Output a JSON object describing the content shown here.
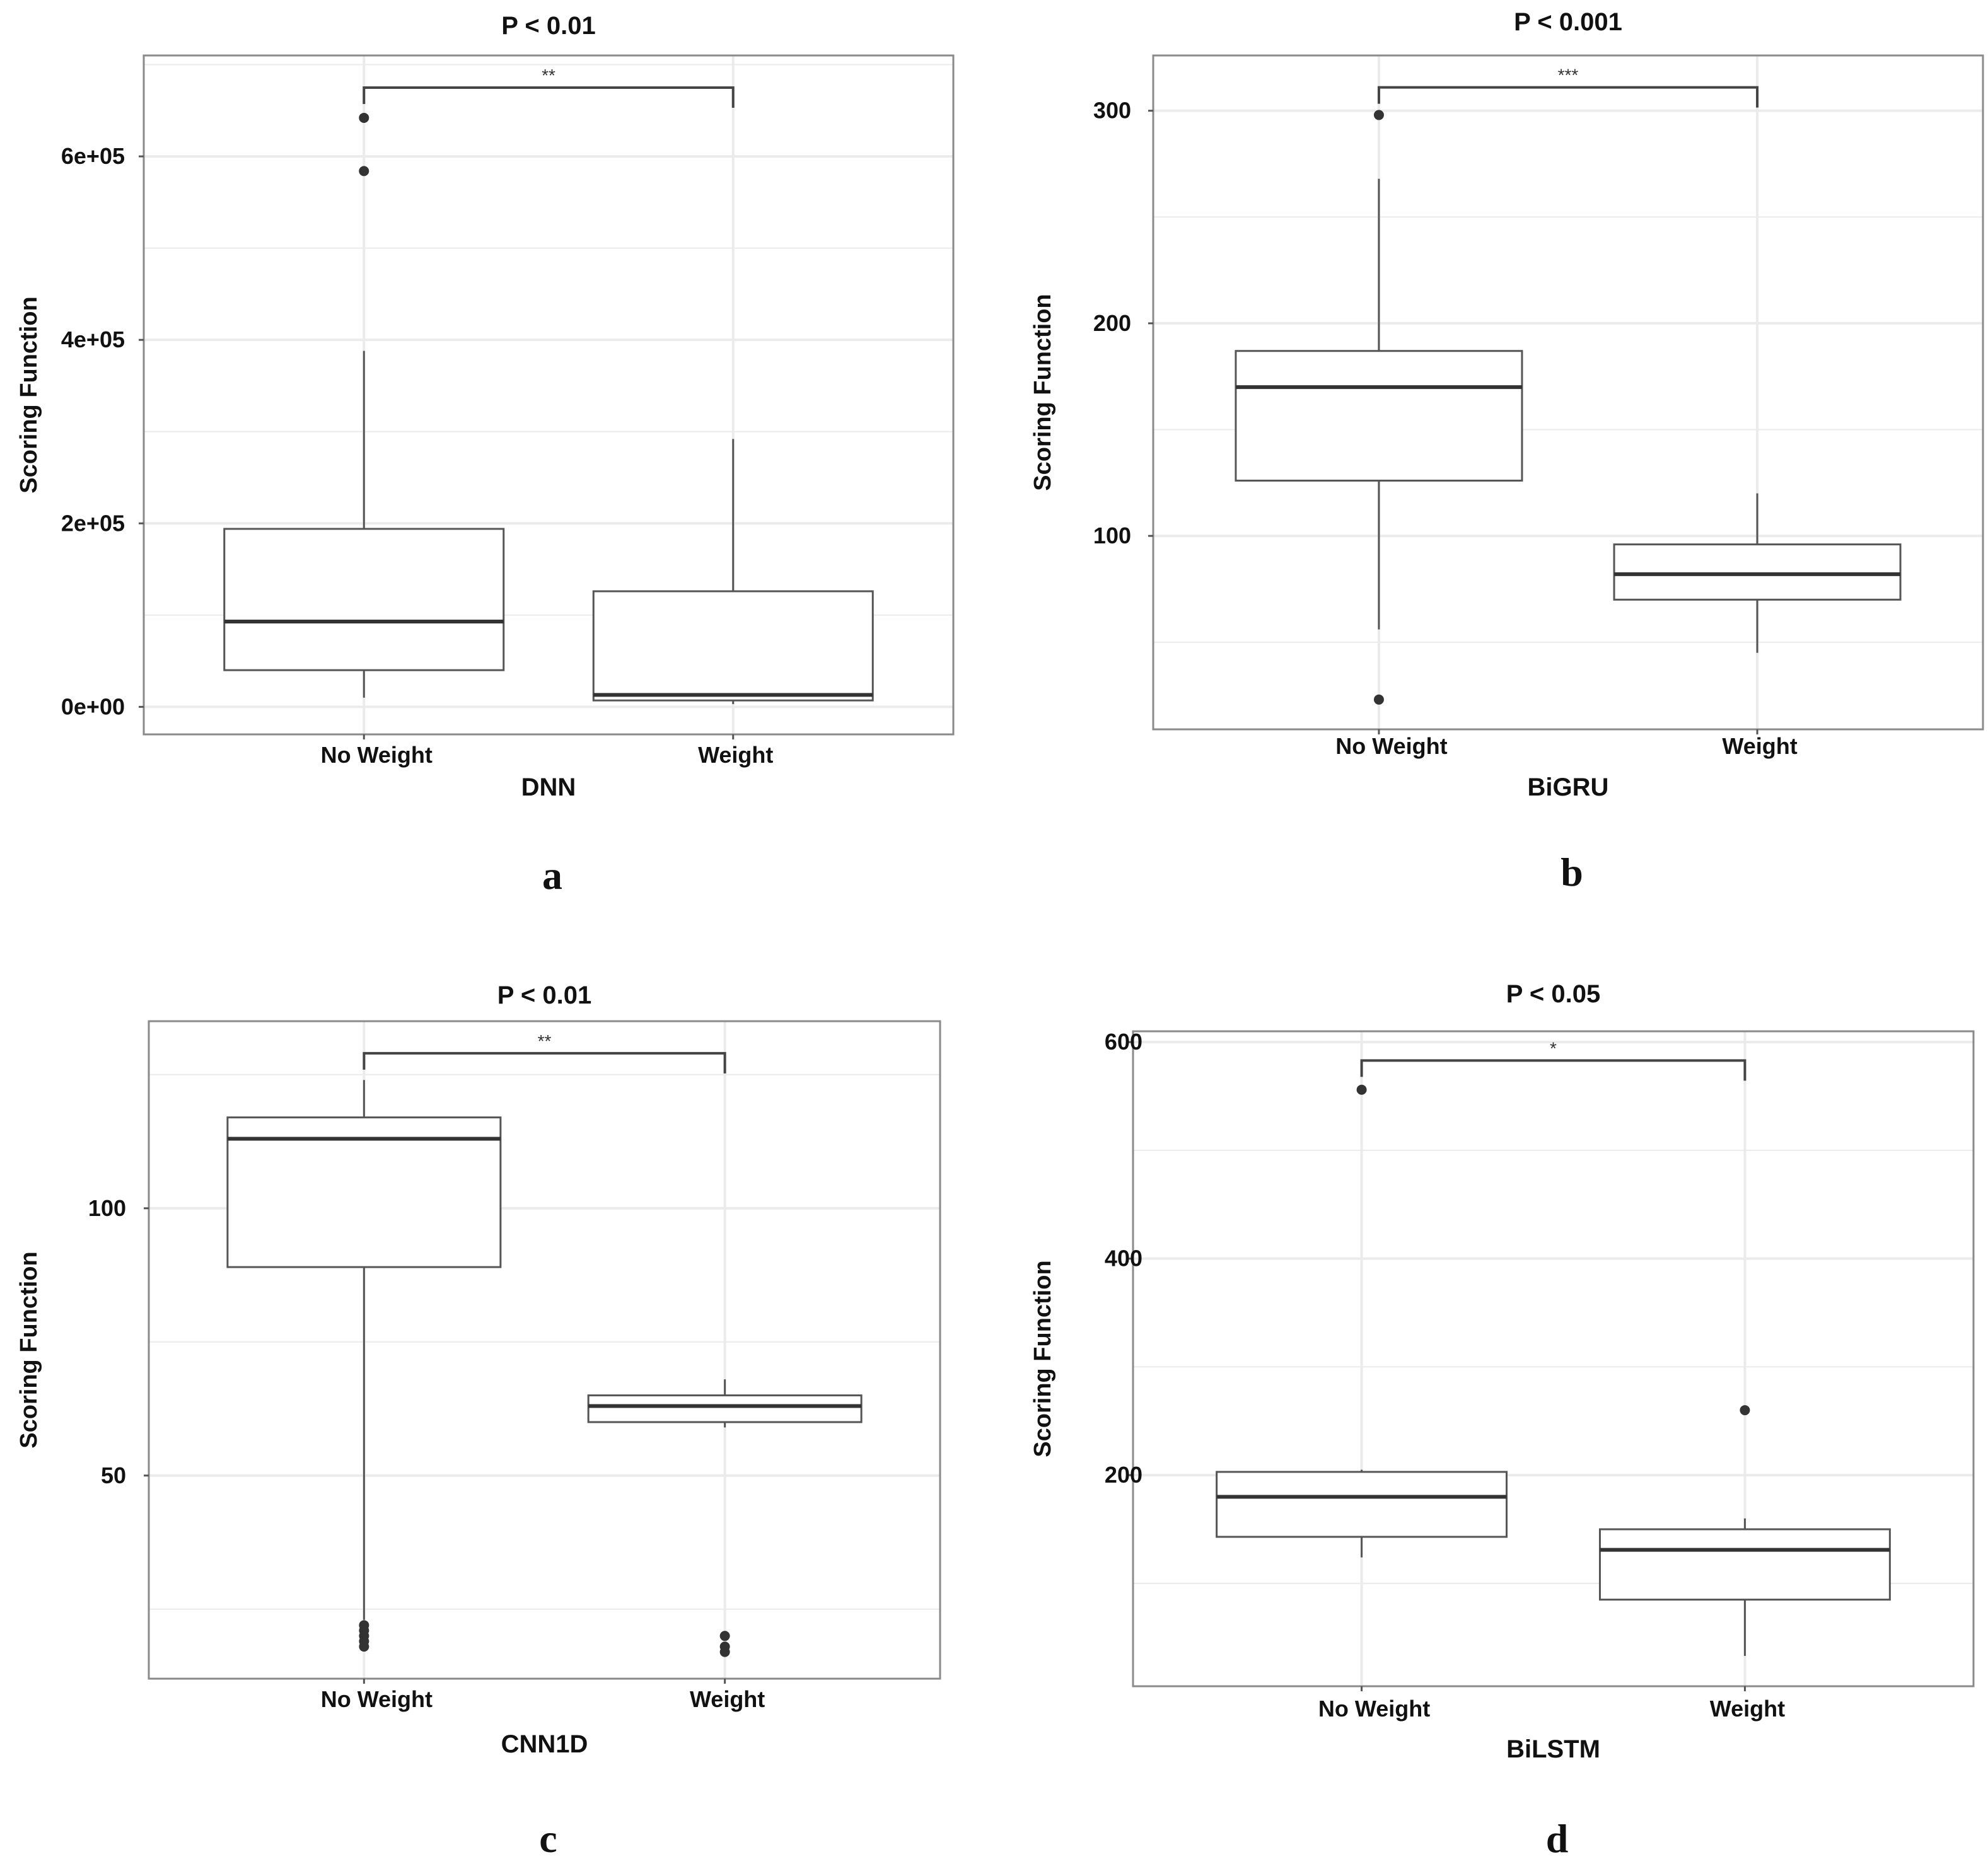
{
  "colors": {
    "box_line": "#555555",
    "median": "#333333",
    "outlier": "#333333",
    "grid": "#ebebeb",
    "panel_border": "#8a8a8a"
  },
  "chart_data": [
    {
      "type": "box",
      "panel_label": "a",
      "title": "P < 0.01",
      "significance": "**",
      "xlabel": "DNN",
      "ylabel": "Scoring Function",
      "categories": [
        "No Weight",
        "Weight"
      ],
      "ylim": [
        -30000,
        710000
      ],
      "yticks": [
        0,
        200000,
        400000,
        600000
      ],
      "ytick_labels": [
        "0e+00",
        "2e+05",
        "4e+05",
        "6e+05"
      ],
      "bracket_y": 675000,
      "boxes": [
        {
          "whisker_low": 10000,
          "q1": 40000,
          "median": 93000,
          "q3": 194000,
          "whisker_high": 388000,
          "outliers": [
            642000,
            584000
          ]
        },
        {
          "whisker_low": 3000,
          "q1": 7000,
          "median": 13000,
          "q3": 126000,
          "whisker_high": 292000,
          "outliers": []
        }
      ]
    },
    {
      "type": "box",
      "panel_label": "b",
      "title": "P < 0.001",
      "significance": "***",
      "xlabel": "BiGRU",
      "ylabel": "Scoring Function",
      "categories": [
        "No Weight",
        "Weight"
      ],
      "ylim": [
        9,
        326
      ],
      "yticks": [
        100,
        200,
        300
      ],
      "ytick_labels": [
        "100",
        "200",
        "300"
      ],
      "bracket_y": 311,
      "boxes": [
        {
          "whisker_low": 56,
          "q1": 126,
          "median": 170,
          "q3": 187,
          "whisker_high": 268,
          "outliers": [
            298,
            23
          ]
        },
        {
          "whisker_low": 45,
          "q1": 70,
          "median": 82,
          "q3": 96,
          "whisker_high": 120,
          "outliers": []
        }
      ]
    },
    {
      "type": "box",
      "panel_label": "c",
      "title": "P < 0.01",
      "significance": "**",
      "xlabel": "CNN1D",
      "ylabel": "Scoring Function",
      "categories": [
        "No Weight",
        "Weight"
      ],
      "ylim": [
        12,
        135
      ],
      "yticks": [
        50,
        100
      ],
      "ytick_labels": [
        "50",
        "100"
      ],
      "bracket_y": 129,
      "boxes": [
        {
          "whisker_low": 23,
          "q1": 89,
          "median": 113,
          "q3": 117,
          "whisker_high": 124,
          "outliers": [
            22,
            21,
            20,
            19,
            18
          ]
        },
        {
          "whisker_low": 59,
          "q1": 60,
          "median": 63,
          "q3": 65,
          "whisker_high": 68,
          "outliers": [
            20,
            18,
            17
          ]
        }
      ]
    },
    {
      "type": "box",
      "panel_label": "d",
      "title": "P < 0.05",
      "significance": "*",
      "xlabel": "BiLSTM",
      "ylabel": "Scoring Function",
      "categories": [
        "No Weight",
        "Weight"
      ],
      "ylim": [
        5,
        610
      ],
      "yticks": [
        200,
        400,
        600
      ],
      "ytick_labels": [
        "200",
        "400",
        "600"
      ],
      "bracket_y": 583,
      "boxes": [
        {
          "whisker_low": 124,
          "q1": 143,
          "median": 180,
          "q3": 203,
          "whisker_high": 205,
          "outliers": [
            556
          ]
        },
        {
          "whisker_low": 33,
          "q1": 85,
          "median": 131,
          "q3": 150,
          "whisker_high": 160,
          "outliers": [
            260
          ]
        }
      ]
    }
  ]
}
